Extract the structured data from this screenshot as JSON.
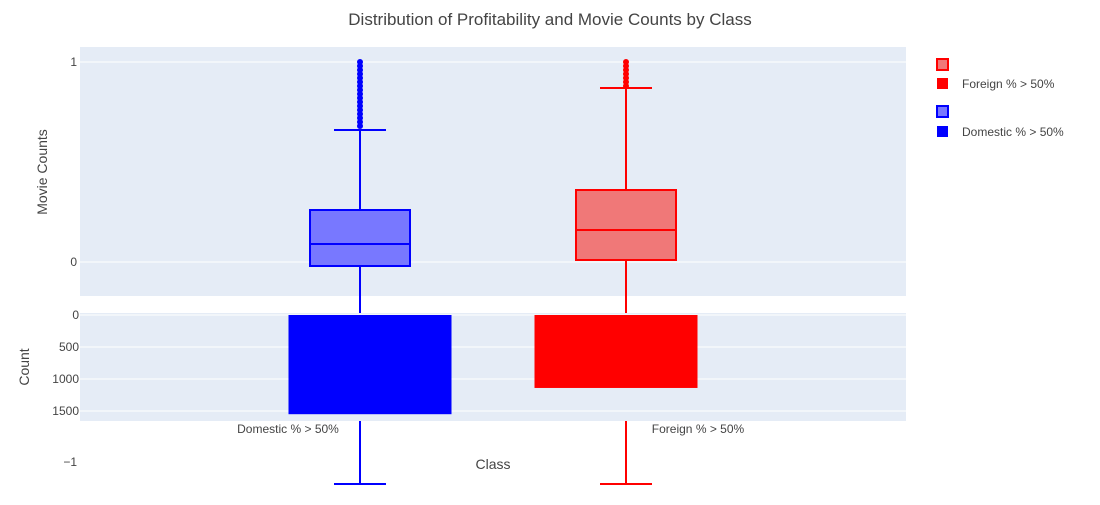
{
  "chart_data": [
    {
      "type": "box",
      "title": "Distribution of Profitability and Movie Counts by Class",
      "ylabel": "Movie Counts",
      "ylim": [
        -1.1,
        1.05
      ],
      "yticks": [
        -1,
        0,
        1
      ],
      "series": [
        {
          "name": "Domestic % > 50%",
          "color": "#0000ff",
          "fill": "#7878ff",
          "min": -1.11,
          "q1": -0.02,
          "median": 0.09,
          "q3": 0.26,
          "whisker_high": 0.66,
          "outliers": [
            0.68,
            0.7,
            0.72,
            0.74,
            0.76,
            0.78,
            0.8,
            0.82,
            0.84,
            0.86,
            0.88,
            0.9,
            0.92,
            0.94,
            0.96,
            0.98,
            1.0
          ]
        },
        {
          "name": "Foreign % > 50%",
          "color": "#ff0000",
          "fill": "#f07878",
          "min": -1.11,
          "q1": 0.01,
          "median": 0.16,
          "q3": 0.36,
          "whisker_high": 0.87,
          "outliers": [
            0.88,
            0.9,
            0.92,
            0.94,
            0.96,
            0.98,
            1.0
          ]
        }
      ]
    },
    {
      "type": "bar",
      "categories": [
        "Domestic % > 50%",
        "Foreign % > 50%"
      ],
      "values": [
        1550,
        1140
      ],
      "colors": [
        "#0000ff",
        "#ff0000"
      ],
      "xlabel": "Class",
      "ylabel": "Count",
      "ylim": [
        0,
        1600
      ],
      "yticks": [
        0,
        500,
        1000,
        1500
      ],
      "y_reversed": true
    }
  ],
  "legend": {
    "items": [
      {
        "label": "",
        "color": "#ff0000",
        "fill": "#f07878",
        "kind": "box"
      },
      {
        "label": "Foreign % > 50%",
        "color": "#ff0000",
        "kind": "bar"
      },
      {
        "label": "",
        "color": "#0000ff",
        "fill": "#7878ff",
        "kind": "box"
      },
      {
        "label": "Domestic % > 50%",
        "color": "#0000ff",
        "kind": "bar"
      }
    ]
  }
}
